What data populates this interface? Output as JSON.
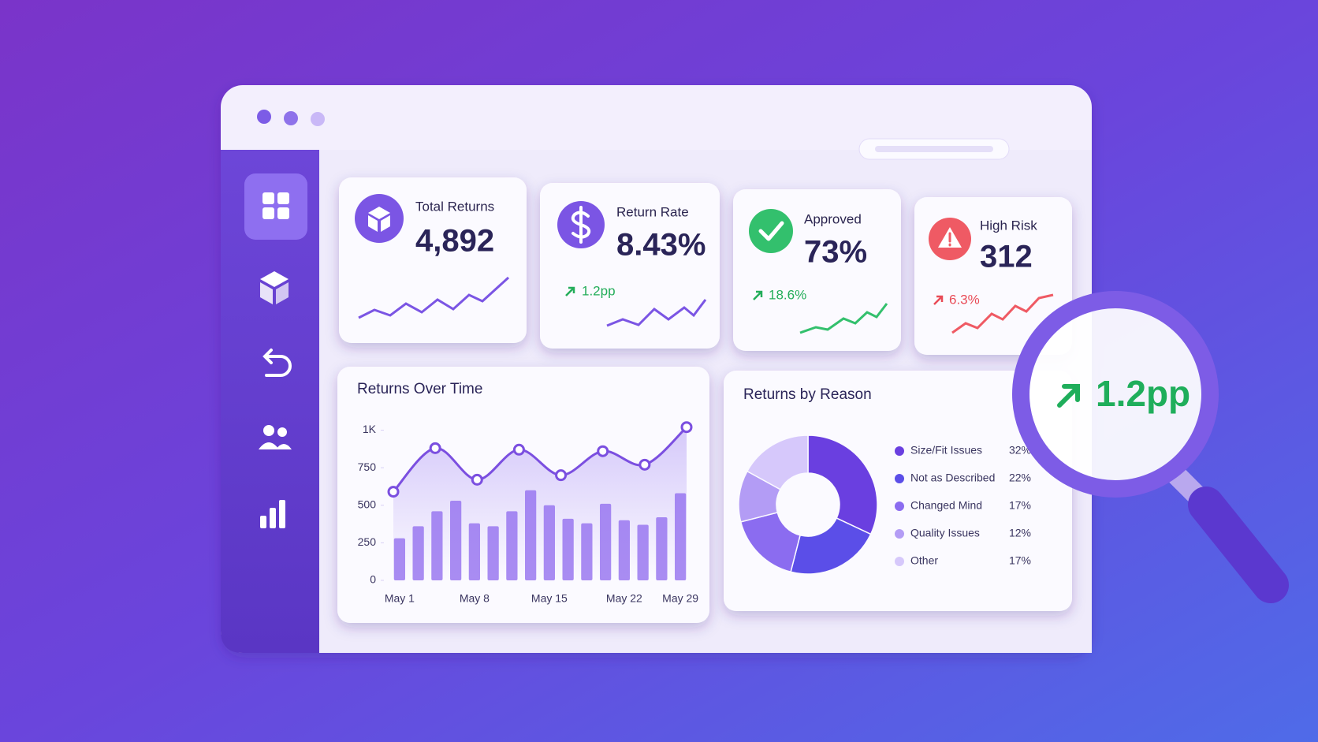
{
  "kpis": [
    {
      "label": "Total Returns",
      "value": "4,892"
    },
    {
      "label": "Return Rate",
      "value": "8.43%",
      "change": "1.2pp"
    },
    {
      "label": "Approved",
      "value": "73%",
      "change": "18.6%"
    },
    {
      "label": "High Risk",
      "value": "312",
      "change": "6.3%"
    }
  ],
  "magnifier": {
    "text": "1.2pp"
  },
  "chart_data": [
    {
      "type": "bar",
      "title": "Returns Over Time",
      "categories": [
        "May 1",
        null,
        null,
        null,
        "May 8",
        null,
        null,
        null,
        "May 15",
        null,
        null,
        null,
        "May 22",
        null,
        null,
        "May 29"
      ],
      "values": [
        280,
        360,
        460,
        530,
        380,
        360,
        460,
        600,
        500,
        410,
        380,
        510,
        400,
        370,
        420,
        580
      ],
      "color": "#a98cf2",
      "ylim": [
        0,
        1050
      ],
      "yticks": [
        0,
        250,
        500,
        750,
        {
          "value": 1000,
          "label": "1K"
        }
      ]
    },
    {
      "type": "line",
      "categories": [
        null,
        null,
        null,
        null,
        null,
        null,
        null,
        null
      ],
      "values": [
        590,
        880,
        670,
        870,
        700,
        860,
        770,
        1020
      ],
      "color": "#7b4fe0",
      "ylim": [
        0,
        1050
      ]
    },
    {
      "type": "pie",
      "title": "Returns by Reason",
      "categories": [
        "Size/Fit Issues",
        "Not as Described",
        "Changed Mind",
        "Quality Issues",
        "Other"
      ],
      "values": [
        32,
        22,
        17,
        12,
        17
      ],
      "value_labels": [
        "32%",
        "22%",
        "17%",
        "12%",
        "17%"
      ],
      "colors": [
        "#6a3fe0",
        "#5b4ee8",
        "#8b6cf0",
        "#b39cf5",
        "#d6c8fb"
      ]
    }
  ]
}
